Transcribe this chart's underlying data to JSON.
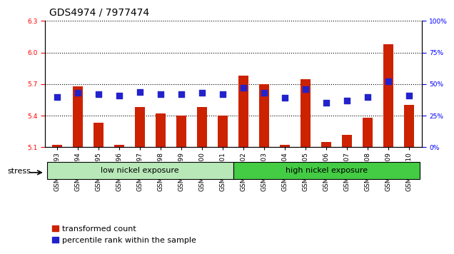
{
  "title": "GDS4974 / 7977474",
  "samples": [
    "GSM992693",
    "GSM992694",
    "GSM992695",
    "GSM992696",
    "GSM992697",
    "GSM992698",
    "GSM992699",
    "GSM992700",
    "GSM992701",
    "GSM992702",
    "GSM992703",
    "GSM992704",
    "GSM992705",
    "GSM992706",
    "GSM992707",
    "GSM992708",
    "GSM992709",
    "GSM992710"
  ],
  "transformed_count": [
    5.12,
    5.68,
    5.33,
    5.12,
    5.48,
    5.42,
    5.4,
    5.48,
    5.4,
    5.78,
    5.7,
    5.12,
    5.75,
    5.15,
    5.22,
    5.38,
    6.08,
    5.5
  ],
  "percentile_rank": [
    40,
    43,
    42,
    41,
    44,
    42,
    42,
    43,
    42,
    47,
    43,
    39,
    46,
    35,
    37,
    40,
    52,
    41
  ],
  "low_nickel_count": 9,
  "high_nickel_count": 9,
  "group_labels": [
    "low nickel exposure",
    "high nickel exposure"
  ],
  "group_color_low": "#b8e8b8",
  "group_color_high": "#44cc44",
  "stress_label": "stress",
  "ylim_left": [
    5.1,
    6.3
  ],
  "ylim_right": [
    0,
    100
  ],
  "yticks_left": [
    5.1,
    5.4,
    5.7,
    6.0,
    6.3
  ],
  "yticks_right": [
    0,
    25,
    50,
    75,
    100
  ],
  "bar_color": "#cc2200",
  "dot_color": "#2222cc",
  "bar_width": 0.5,
  "dot_size": 30,
  "title_fontsize": 10,
  "tick_fontsize": 6.5,
  "label_fontsize": 8,
  "legend_fontsize": 8,
  "background_color": "#ffffff",
  "plot_bg_color": "#ffffff"
}
